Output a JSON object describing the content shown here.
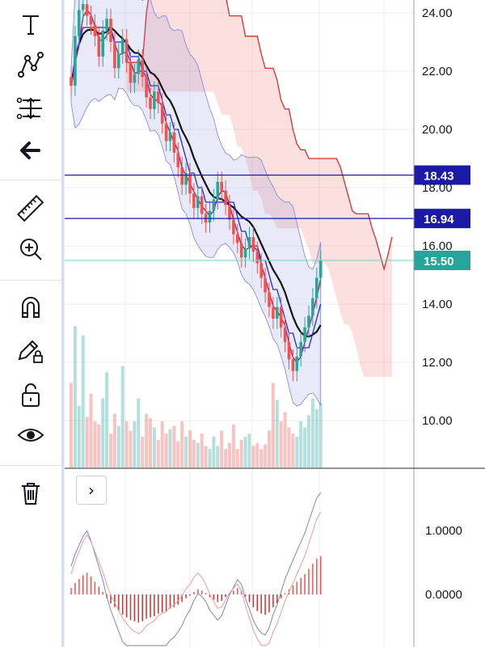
{
  "toolbar": {
    "items": [
      {
        "name": "text-tool",
        "icon": "text-icon"
      },
      {
        "name": "pattern-tool",
        "icon": "pattern-icon"
      },
      {
        "name": "fib-tool",
        "icon": "fib-icon"
      },
      {
        "name": "back-tool",
        "icon": "arrow-left-icon"
      },
      {
        "name": "measure-tool",
        "icon": "ruler-icon"
      },
      {
        "name": "zoom-tool",
        "icon": "zoom-in-icon"
      },
      {
        "name": "magnet-tool",
        "icon": "magnet-icon"
      },
      {
        "name": "lock-drawing-tool",
        "icon": "pencil-lock-icon"
      },
      {
        "name": "lock-tool",
        "icon": "unlock-icon"
      },
      {
        "name": "visibility-tool",
        "icon": "eye-icon"
      },
      {
        "name": "delete-tool",
        "icon": "trash-icon"
      }
    ]
  },
  "expand_button_label": "›",
  "colors": {
    "up": "#ef5350",
    "down": "#26a69a",
    "hline": "#1a1aa6",
    "current": "#26a69a",
    "grid": "#eeeeee"
  },
  "chart_data": {
    "type": "candlestick",
    "price_axis": {
      "min": 8.5,
      "max": 24.3,
      "ticks": [
        24.0,
        22.0,
        20.0,
        18.0,
        16.0,
        14.0,
        12.0,
        10.0
      ]
    },
    "horizontal_lines": [
      {
        "value": 18.43,
        "label": "18.43",
        "color": "#1a1aa6"
      },
      {
        "value": 16.94,
        "label": "16.94",
        "color": "#1a1aa6"
      }
    ],
    "current_price": {
      "value": 15.5,
      "label": "15.50",
      "color": "#26a69a"
    },
    "oscillator_axis": {
      "min": -0.9,
      "max": 1.9,
      "ticks": [
        1.0,
        0.0
      ],
      "labels": [
        "1.0000",
        "0.0000"
      ]
    },
    "closes": [
      21.5,
      23.2,
      24.1,
      24.3,
      23.9,
      23.6,
      23.2,
      22.5,
      23.4,
      23.8,
      23.0,
      22.1,
      22.6,
      23.1,
      22.3,
      21.6,
      21.9,
      22.4,
      21.8,
      21.1,
      20.7,
      21.3,
      20.9,
      20.2,
      19.6,
      19.9,
      19.2,
      18.7,
      18.1,
      18.5,
      17.8,
      17.3,
      17.7,
      17.1,
      16.8,
      17.2,
      17.6,
      18.2,
      17.9,
      17.4,
      16.9,
      16.4,
      16.1,
      15.6,
      15.9,
      16.3,
      15.8,
      15.4,
      14.9,
      14.4,
      13.9,
      13.5,
      13.9,
      13.2,
      12.7,
      12.1,
      11.7,
      12.2,
      12.7,
      13.2,
      13.6,
      14.2,
      14.9,
      15.5
    ],
    "volumes": [
      0.55,
      0.92,
      0.4,
      0.86,
      0.33,
      0.48,
      0.3,
      0.28,
      0.45,
      0.62,
      0.22,
      0.35,
      0.27,
      0.66,
      0.3,
      0.24,
      0.3,
      0.45,
      0.2,
      0.35,
      0.32,
      0.26,
      0.18,
      0.3,
      0.22,
      0.25,
      0.27,
      0.17,
      0.3,
      0.2,
      0.24,
      0.18,
      0.16,
      0.22,
      0.14,
      0.12,
      0.2,
      0.14,
      0.24,
      0.12,
      0.16,
      0.28,
      0.12,
      0.18,
      0.2,
      0.22,
      0.14,
      0.16,
      0.12,
      0.15,
      0.24,
      0.55,
      0.44,
      0.3,
      0.36,
      0.26,
      0.22,
      0.2,
      0.3,
      0.26,
      0.34,
      0.45,
      0.38,
      0.42
    ],
    "macd_histogram": [
      0.1,
      0.18,
      0.24,
      0.3,
      0.34,
      0.28,
      0.2,
      0.12,
      0.04,
      -0.06,
      -0.14,
      -0.2,
      -0.26,
      -0.32,
      -0.36,
      -0.4,
      -0.42,
      -0.44,
      -0.42,
      -0.38,
      -0.36,
      -0.34,
      -0.3,
      -0.28,
      -0.26,
      -0.22,
      -0.2,
      -0.16,
      -0.12,
      -0.06,
      -0.02,
      0.04,
      0.08,
      0.06,
      0.02,
      -0.04,
      -0.08,
      -0.12,
      -0.1,
      -0.04,
      0.02,
      0.06,
      0.1,
      0.06,
      -0.04,
      -0.12,
      -0.2,
      -0.26,
      -0.3,
      -0.32,
      -0.28,
      -0.2,
      -0.14,
      -0.06,
      0.02,
      0.08,
      0.14,
      0.2,
      0.26,
      0.32,
      0.4,
      0.48,
      0.56,
      0.6
    ]
  }
}
